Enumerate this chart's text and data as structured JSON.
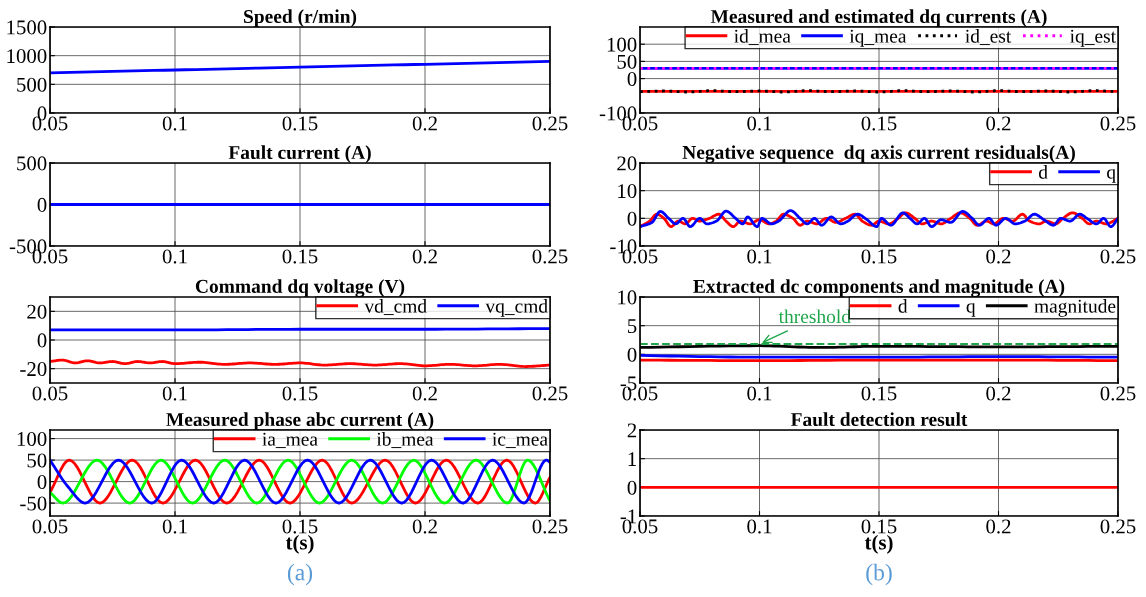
{
  "chart_data": [
    {
      "type": "line",
      "title": "Speed (r/min)",
      "xlim": [
        0.05,
        0.25
      ],
      "xticks": [
        0.05,
        0.1,
        0.15,
        0.2,
        0.25
      ],
      "ylim": [
        0,
        1500
      ],
      "yticks": [
        0,
        500,
        1000,
        1500
      ],
      "grid": true,
      "series": [
        {
          "color": "#0000ff",
          "x": [
            0.05,
            0.1,
            0.15,
            0.2,
            0.25
          ],
          "values": [
            700,
            750,
            800,
            850,
            900
          ]
        }
      ]
    },
    {
      "type": "line",
      "title": "Fault current (A)",
      "xlim": [
        0.05,
        0.25
      ],
      "xticks": [
        0.05,
        0.1,
        0.15,
        0.2,
        0.25
      ],
      "ylim": [
        -500,
        500
      ],
      "yticks": [
        -500,
        0,
        500
      ],
      "grid": true,
      "series": [
        {
          "color": "#0000ff",
          "x": [
            0.05,
            0.1,
            0.15,
            0.2,
            0.25
          ],
          "values": [
            0,
            0,
            0,
            0,
            0
          ]
        }
      ]
    },
    {
      "type": "line",
      "title": "Command dq voltage (V)",
      "xlim": [
        0.05,
        0.25
      ],
      "xticks": [
        0.05,
        0.1,
        0.15,
        0.2,
        0.25
      ],
      "ylim": [
        -30,
        30
      ],
      "yticks": [
        -20,
        0,
        20
      ],
      "grid": true,
      "legend": "top right",
      "series": [
        {
          "name": "vd_cmd",
          "color": "#ff0000",
          "x": [
            0.05,
            0.055,
            0.06,
            0.065,
            0.07,
            0.075,
            0.08,
            0.085,
            0.09,
            0.095,
            0.1,
            0.11,
            0.12,
            0.13,
            0.14,
            0.15,
            0.16,
            0.17,
            0.18,
            0.19,
            0.2,
            0.21,
            0.22,
            0.23,
            0.24,
            0.25
          ],
          "values": [
            -15,
            -14,
            -16,
            -14.5,
            -16,
            -15,
            -16.5,
            -15,
            -16,
            -15,
            -16.5,
            -15.5,
            -17,
            -16,
            -17,
            -16,
            -17.5,
            -16.5,
            -17.5,
            -16.5,
            -18,
            -17,
            -18,
            -17,
            -18.5,
            -17.5
          ]
        },
        {
          "name": "vq_cmd",
          "color": "#0000ff",
          "x": [
            0.05,
            0.1,
            0.15,
            0.2,
            0.25
          ],
          "values": [
            7,
            7,
            7.5,
            7.5,
            8
          ]
        }
      ]
    },
    {
      "type": "line",
      "title": "Measured phase abc current (A)",
      "xlabel": "t(s)",
      "xlim": [
        0.05,
        0.25
      ],
      "xticks": [
        0.05,
        0.1,
        0.15,
        0.2,
        0.25
      ],
      "ylim": [
        -80,
        120
      ],
      "yticks": [
        -50,
        0,
        50,
        100
      ],
      "grid": true,
      "legend": "top right",
      "annotations": [
        "(a)"
      ],
      "series": [
        {
          "name": "ia_mea",
          "color": "#ff0000",
          "x": [
            0.05,
            0.0577,
            0.07,
            0.0829,
            0.0952,
            0.1082,
            0.1207,
            0.1337,
            0.146,
            0.1589,
            0.1707,
            0.1841,
            0.1962,
            0.2085,
            0.2211,
            0.2327,
            0.2441,
            0.25
          ],
          "values": [
            -25,
            50,
            -50,
            50,
            -50,
            50,
            -50,
            50,
            -50,
            50,
            -50,
            50,
            -50,
            50,
            -50,
            50,
            -50,
            10
          ]
        },
        {
          "name": "ib_mea",
          "color": "#00ff00",
          "x": [
            0.05,
            0.0552,
            0.0688,
            0.0819,
            0.0944,
            0.107,
            0.1199,
            0.1327,
            0.1452,
            0.1578,
            0.1707,
            0.183,
            0.1955,
            0.2078,
            0.2204,
            0.233,
            0.241,
            0.25
          ],
          "values": [
            -25,
            -50,
            50,
            -50,
            50,
            -50,
            50,
            -50,
            50,
            -50,
            50,
            -50,
            50,
            -50,
            50,
            -50,
            50,
            -45
          ]
        },
        {
          "name": "ic_mea",
          "color": "#0000ff",
          "x": [
            0.05,
            0.0572,
            0.0641,
            0.0774,
            0.0907,
            0.1026,
            0.1155,
            0.1278,
            0.1404,
            0.153,
            0.1656,
            0.1781,
            0.1907,
            0.2026,
            0.2152,
            0.227,
            0.2396,
            0.2485,
            0.25
          ],
          "values": [
            50,
            -12,
            -50,
            50,
            -50,
            50,
            -50,
            50,
            -50,
            50,
            -50,
            50,
            -50,
            50,
            -50,
            50,
            -50,
            50,
            45
          ]
        }
      ]
    },
    {
      "type": "line",
      "title": "Measured and estimated dq currents (A)",
      "xlim": [
        0.05,
        0.25
      ],
      "xticks": [
        0.05,
        0.1,
        0.15,
        0.2,
        0.25
      ],
      "ylim": [
        -100,
        150
      ],
      "yticks": [
        -100,
        0,
        50,
        100
      ],
      "grid": true,
      "legend": "top right",
      "series": [
        {
          "name": "id_mea",
          "color": "#ff0000",
          "line_style": "solid",
          "x": [
            0.05,
            0.1,
            0.15,
            0.2,
            0.25
          ],
          "values": [
            -37,
            -37,
            -37,
            -37,
            -37
          ]
        },
        {
          "name": "iq_mea",
          "color": "#0000ff",
          "line_style": "solid",
          "x": [
            0.05,
            0.1,
            0.15,
            0.2,
            0.25
          ],
          "values": [
            30,
            30,
            30,
            30,
            30
          ]
        },
        {
          "name": "id_est",
          "color": "#000000",
          "line_style": "dotted",
          "x": [
            0.05,
            0.06,
            0.07,
            0.08,
            0.09,
            0.1,
            0.11,
            0.12,
            0.13,
            0.14,
            0.15,
            0.16,
            0.17,
            0.18,
            0.19,
            0.2,
            0.21,
            0.22,
            0.23,
            0.24,
            0.25
          ],
          "values": [
            -38,
            -36,
            -39,
            -35,
            -38,
            -36,
            -39,
            -35,
            -38,
            -36,
            -39,
            -35,
            -38,
            -36,
            -39,
            -35,
            -38,
            -36,
            -39,
            -35,
            -38
          ]
        },
        {
          "name": "iq_est",
          "color": "#ff00ff",
          "line_style": "dotted",
          "x": [
            0.05,
            0.1,
            0.15,
            0.2,
            0.25
          ],
          "values": [
            30,
            30,
            30,
            30,
            30
          ]
        }
      ]
    },
    {
      "type": "line",
      "title": "Negative sequence  dq axis current residuals(A)",
      "xlim": [
        0.05,
        0.25
      ],
      "xticks": [
        0.05,
        0.1,
        0.15,
        0.2,
        0.25
      ],
      "ylim": [
        -10,
        20
      ],
      "yticks": [
        -10,
        0,
        10,
        20
      ],
      "grid": true,
      "legend": "top right",
      "series": [
        {
          "name": "d",
          "color": "#ff0000",
          "x": [
            0.05,
            0.054,
            0.057,
            0.06,
            0.063,
            0.066,
            0.069,
            0.072,
            0.075,
            0.079,
            0.083,
            0.086,
            0.089,
            0.092,
            0.096,
            0.1,
            0.104,
            0.107,
            0.11,
            0.114,
            0.117,
            0.12,
            0.124,
            0.128,
            0.132,
            0.136,
            0.14,
            0.143,
            0.147,
            0.15,
            0.154,
            0.158,
            0.161,
            0.165,
            0.168,
            0.172,
            0.176,
            0.18,
            0.184,
            0.188,
            0.191,
            0.195,
            0.198,
            0.202,
            0.206,
            0.21,
            0.213,
            0.217,
            0.22,
            0.224,
            0.227,
            0.231,
            0.235,
            0.238,
            0.241,
            0.245,
            0.25
          ],
          "values": [
            -3,
            -1,
            1.5,
            0,
            -3,
            -1,
            -2,
            0,
            -1,
            0,
            1.5,
            -1,
            -3,
            -1,
            -2,
            -0.5,
            -2,
            -1,
            1.5,
            0,
            -2.5,
            -1,
            -2,
            0,
            -1.5,
            0,
            1.5,
            -1,
            -2.5,
            -1,
            -2,
            0,
            2,
            0,
            -2,
            -1,
            -2,
            0,
            2,
            0,
            -2.5,
            -1,
            -2,
            0,
            -1,
            1.5,
            -1,
            -2,
            -1,
            -2,
            0,
            2,
            0,
            -2,
            -1,
            -2,
            0
          ]
        },
        {
          "name": "q",
          "color": "#0000ff",
          "x": [
            0.05,
            0.055,
            0.0585,
            0.062,
            0.065,
            0.068,
            0.071,
            0.075,
            0.078,
            0.082,
            0.086,
            0.09,
            0.093,
            0.095,
            0.099,
            0.101,
            0.105,
            0.108,
            0.113,
            0.117,
            0.12,
            0.123,
            0.126,
            0.13,
            0.134,
            0.137,
            0.141,
            0.145,
            0.149,
            0.151,
            0.155,
            0.16,
            0.163,
            0.166,
            0.169,
            0.172,
            0.176,
            0.18,
            0.185,
            0.189,
            0.192,
            0.196,
            0.199,
            0.203,
            0.207,
            0.211,
            0.215,
            0.219,
            0.223,
            0.226,
            0.23,
            0.234,
            0.237,
            0.241,
            0.244,
            0.247,
            0.25
          ],
          "values": [
            -3,
            -1.5,
            2.5,
            0,
            -2,
            0,
            -3,
            0,
            -2,
            -1,
            2.6,
            0,
            -2,
            0.5,
            -3,
            0,
            -2,
            -1,
            2.8,
            0,
            -2,
            0,
            -2.5,
            0.5,
            -2,
            -1,
            1.5,
            -0.5,
            -3,
            0,
            -2.5,
            2,
            0,
            -2,
            0,
            -3,
            -0.5,
            -1.5,
            2.5,
            0,
            -2.5,
            0,
            -2.5,
            0,
            -2,
            -1,
            1.5,
            -0.5,
            -2.5,
            0,
            -1,
            1.5,
            0,
            -2,
            0,
            -3,
            0
          ]
        }
      ]
    },
    {
      "type": "line",
      "title": "Extracted dc components and magnitude (A)",
      "xlim": [
        0.05,
        0.25
      ],
      "xticks": [
        0.05,
        0.1,
        0.15,
        0.2,
        0.25
      ],
      "ylim": [
        -5,
        10
      ],
      "yticks": [
        -5,
        0,
        5,
        10
      ],
      "grid": true,
      "legend": "top right",
      "ref_lines": [
        {
          "axis": "y",
          "value": 1.8,
          "color": "#1fa64a",
          "line_style": "dashed"
        }
      ],
      "annotations": [
        {
          "text": "threshold",
          "x": 0.1,
          "y": 1.8
        }
      ],
      "series": [
        {
          "name": "d",
          "color": "#ff0000",
          "x": [
            0.05,
            0.1,
            0.15,
            0.2,
            0.25
          ],
          "values": [
            -1,
            -1.1,
            -1,
            -1,
            -1.1
          ]
        },
        {
          "name": "q",
          "color": "#0000ff",
          "x": [
            0.05,
            0.1,
            0.15,
            0.2,
            0.25
          ],
          "values": [
            -0.2,
            -0.5,
            -0.5,
            -0.4,
            -0.5
          ]
        },
        {
          "name": "magnitude",
          "color": "#000000",
          "x": [
            0.05,
            0.1,
            0.125,
            0.15,
            0.2,
            0.25
          ],
          "values": [
            1.2,
            1.5,
            1.2,
            1.4,
            1.3,
            1.4
          ]
        }
      ]
    },
    {
      "type": "line",
      "title": "Fault detection result",
      "xlabel": "t(s)",
      "xlim": [
        0.05,
        0.25
      ],
      "xticks": [
        0.05,
        0.1,
        0.15,
        0.2,
        0.25
      ],
      "ylim": [
        -1,
        2
      ],
      "yticks": [
        -1,
        0,
        1,
        2
      ],
      "grid": true,
      "annotations": [
        "(b)"
      ],
      "series": [
        {
          "color": "#ff0000",
          "x": [
            0.05,
            0.25
          ],
          "values": [
            0,
            0
          ]
        }
      ]
    }
  ]
}
